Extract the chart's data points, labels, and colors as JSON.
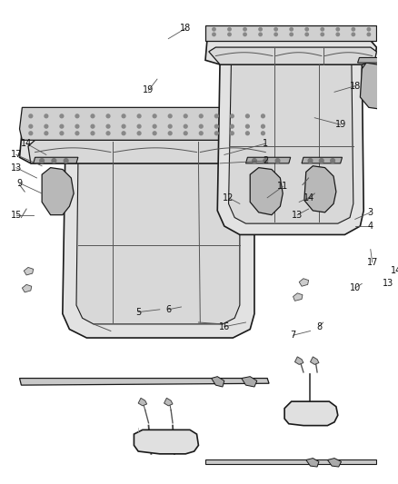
{
  "background_color": "#ffffff",
  "figsize": [
    4.38,
    5.33
  ],
  "dpi": 100,
  "seat_color": "#e8e8e8",
  "outline_color": "#1a1a1a",
  "seam_color": "#555555",
  "label_color": "#111111",
  "line_color": "#555555"
}
